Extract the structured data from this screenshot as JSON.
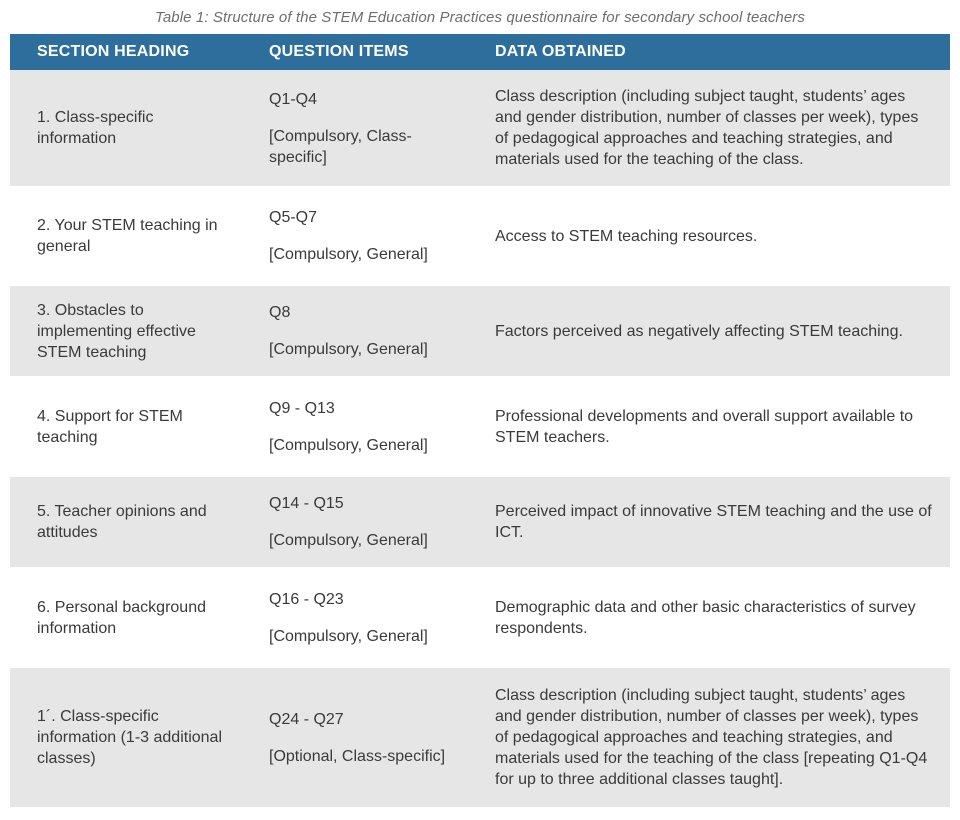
{
  "caption": "Table 1: Structure of the STEM Education Practices questionnaire for secondary school teachers",
  "headers": {
    "section": "SECTION HEADING",
    "items": "QUESTION ITEMS",
    "data": "DATA OBTAINED"
  },
  "rows": [
    {
      "section": "1. Class-specific information",
      "range": "Q1-Q4",
      "type": "[Compulsory, Class-specific]",
      "data": "Class description (including subject taught, students’ ages and gender distribution, number of classes per week), types of pedagogical approaches and teaching strategies, and materials used for the teaching of the class."
    },
    {
      "section": "2. Your STEM teaching in general",
      "range": "Q5-Q7",
      "type": "[Compulsory, General]",
      "data": "Access to STEM teaching resources."
    },
    {
      "section": "3. Obstacles to implementing effective STEM teaching",
      "range": "Q8",
      "type": "[Compulsory, General]",
      "data": "Factors perceived as negatively affecting STEM teaching."
    },
    {
      "section": "4. Support for STEM teaching",
      "range": "Q9 - Q13",
      "type": "[Compulsory, General]",
      "data": "Professional developments and overall support available to STEM teachers."
    },
    {
      "section": "5. Teacher opinions and attitudes",
      "range": "Q14 - Q15",
      "type": "[Compulsory, General]",
      "data": "Perceived impact of innovative STEM teaching and the use of ICT."
    },
    {
      "section": "6. Personal background information",
      "range": "Q16 - Q23",
      "type": "[Compulsory, General]",
      "data": "Demographic data and other basic characteristics of survey respondents."
    },
    {
      "section": "1´. Class-specific information (1-3 additional classes)",
      "range": "Q24 - Q27",
      "type": "[Optional, Class-specific]",
      "data": "Class description (including subject taught, students’ ages and gender distribution, number of classes per week), types of pedagogical approaches and teaching strategies, and materials used for the teaching of the class [repeating Q1-Q4 for up to three additional classes taught]."
    }
  ]
}
